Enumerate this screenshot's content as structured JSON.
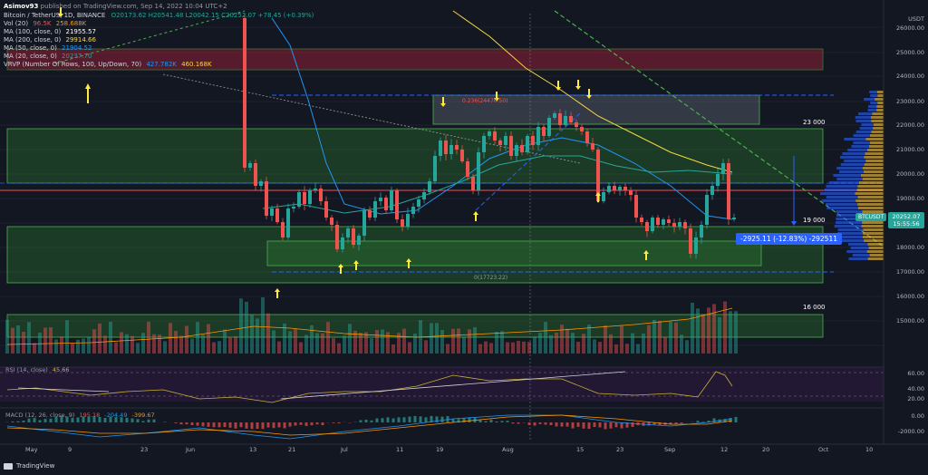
{
  "header": {
    "author": "Asimov93",
    "published": "published on TradingView.com, Sep 14, 2022 10:04 UTC+2",
    "symbol": "Bitcoin / TetherUS, 1D, BINANCE",
    "ohlc": "O20173.62 H20541.48 L20042.15 C20252.07 +78.45 (+0.39%)",
    "indicators": [
      {
        "label": "Vol (20)",
        "v1": "96.5K",
        "v2": "258.688K"
      },
      {
        "label": "MA (100, close, 0)",
        "v1": "21955.57"
      },
      {
        "label": "MA (200, close, 0)",
        "v1": "29914.66"
      },
      {
        "label": "MA (50, close, 0)",
        "v1": "21904.52"
      },
      {
        "label": "MA (20, close, 0)",
        "v1": "20237.70"
      },
      {
        "label": "VRVP (Number Of Rows, 100, Up/Down, 70)",
        "v1": "427.782K",
        "v2": "460.168K"
      }
    ]
  },
  "price_axis": {
    "currency": "USDT",
    "ticks": [
      "26000.00",
      "25000.00",
      "24000.00",
      "23000.00",
      "22000.00",
      "21000.00",
      "20000.00",
      "19000.00",
      "18000.00",
      "17000.00",
      "16000.00",
      "15000.00"
    ]
  },
  "zone_labels": [
    "23 000",
    "19 000",
    "16 000"
  ],
  "fib_labels": [
    "0.236(24470.50)",
    "0(17723.22)"
  ],
  "measure_label": "-2925.11 (-12.83%) -292511",
  "price_tag": {
    "symbol": "BTCUSDT",
    "price": "20252.07",
    "countdown": "15:55:56"
  },
  "date_axis": [
    "May",
    "9",
    "23",
    "Jun",
    "13",
    "21",
    "Jul",
    "11",
    "19",
    "Aug",
    "15",
    "23",
    "Sep",
    "12",
    "20",
    "Oct",
    "10"
  ],
  "rsi": {
    "label": "RSI (14, close)",
    "value": "45.66",
    "ticks": [
      "60.00",
      "40.00",
      "20.00"
    ]
  },
  "macd": {
    "label": "MACD (12, 26, close, 9)",
    "v1": "195.18",
    "v2": "-204.49",
    "v3": "-399.67",
    "ticks": [
      "0.00",
      "-2000.00"
    ]
  },
  "footer": {
    "brand": "TradingView"
  },
  "colors": {
    "up": "#26a69a",
    "down": "#ef5350",
    "zone_green": "#4caf50",
    "zone_red": "#b2223b",
    "yellow": "#ffeb3b",
    "blue_dash": "#2962ff"
  }
}
